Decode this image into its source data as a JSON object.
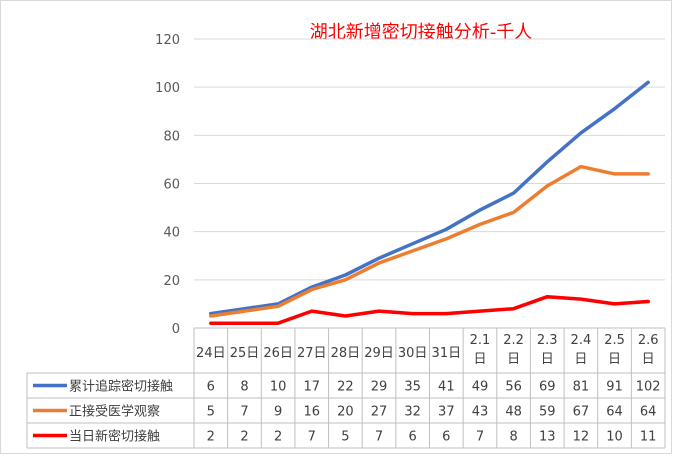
{
  "chart_data": {
    "type": "line",
    "title": "湖北新增密切接触分析-千人",
    "title_color": "#ff0000",
    "xlabel": "",
    "ylabel": "",
    "ylim": [
      0,
      120
    ],
    "y_ticks": [
      "0",
      "20",
      "40",
      "60",
      "80",
      "100",
      "120"
    ],
    "grid": true,
    "legend": "data-table-below",
    "categories": [
      "24日",
      "25日",
      "26日",
      "27日",
      "28日",
      "29日",
      "30日",
      "31日",
      "2.1日",
      "2.2日",
      "2.3日",
      "2.4日",
      "2.5日",
      "2.6日"
    ],
    "category_lines": [
      [
        "24日"
      ],
      [
        "25日"
      ],
      [
        "26日"
      ],
      [
        "27日"
      ],
      [
        "28日"
      ],
      [
        "29日"
      ],
      [
        "30日"
      ],
      [
        "31日"
      ],
      [
        "2.1",
        "日"
      ],
      [
        "2.2",
        "日"
      ],
      [
        "2.3",
        "日"
      ],
      [
        "2.4",
        "日"
      ],
      [
        "2.5",
        "日"
      ],
      [
        "2.6",
        "日"
      ]
    ],
    "series": [
      {
        "name": "累计追踪密切接触",
        "color": "#4472c4",
        "values": [
          6,
          8,
          10,
          17,
          22,
          29,
          35,
          41,
          49,
          56,
          69,
          81,
          91,
          102
        ]
      },
      {
        "name": "正接受医学观察",
        "color": "#ed7d31",
        "values": [
          5,
          7,
          9,
          16,
          20,
          27,
          32,
          37,
          43,
          48,
          59,
          67,
          64,
          64
        ]
      },
      {
        "name": "当日新密切接触",
        "color": "#ff0000",
        "values": [
          2,
          2,
          2,
          7,
          5,
          7,
          6,
          6,
          7,
          8,
          13,
          12,
          10,
          11
        ]
      }
    ]
  }
}
